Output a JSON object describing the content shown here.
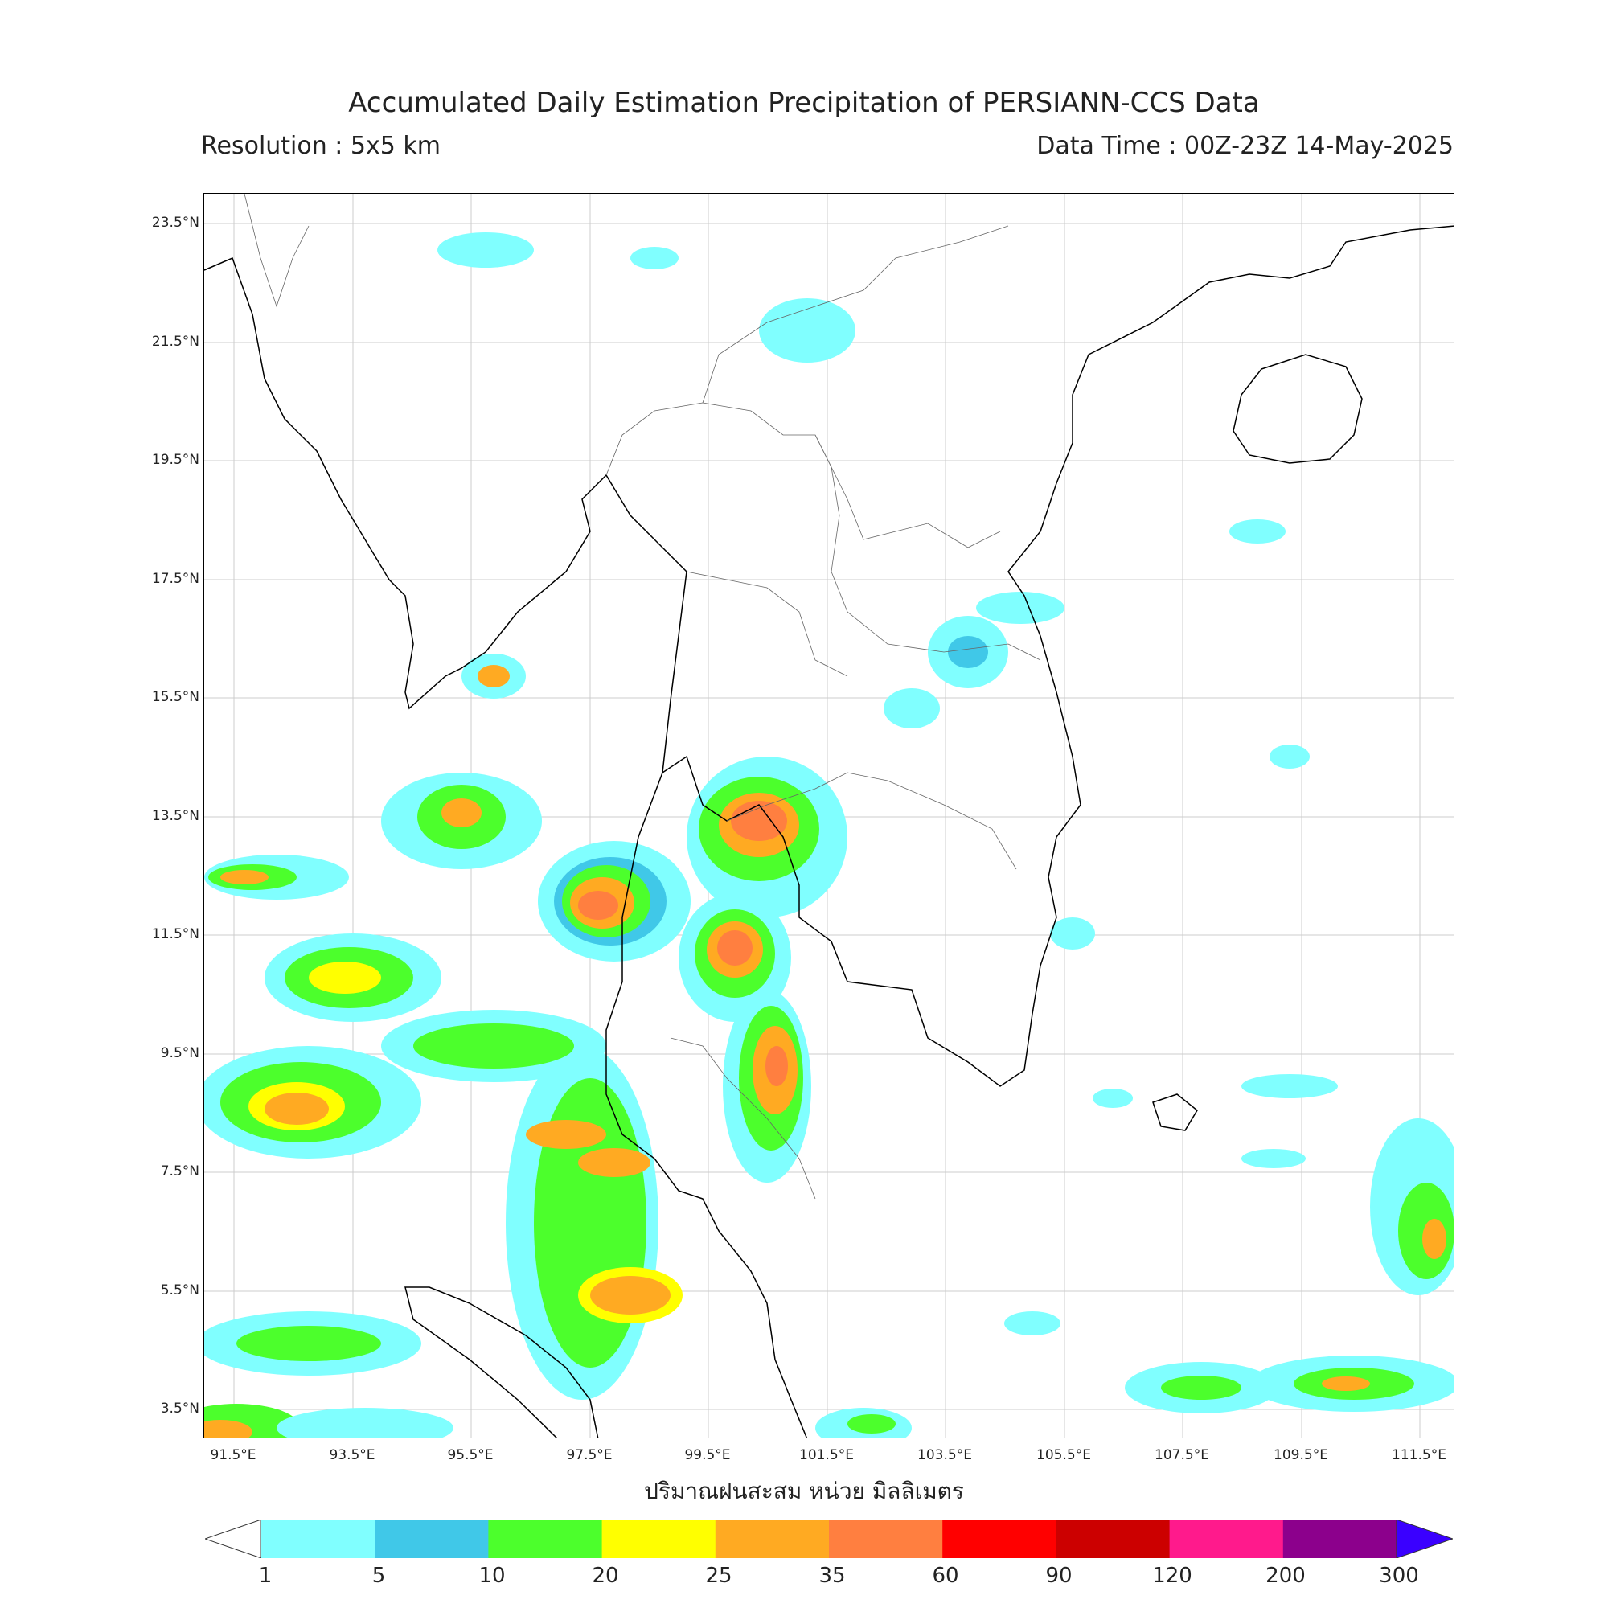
{
  "header": {
    "title": "Accumulated Daily Estimation Precipitation of PERSIANN-CCS Data",
    "resolution": "Resolution : 5x5 km",
    "data_time": "Data Time : 00Z-23Z 14-May-2025"
  },
  "map": {
    "lat_ticks": [
      "23.5°N",
      "21.5°N",
      "19.5°N",
      "17.5°N",
      "15.5°N",
      "13.5°N",
      "11.5°N",
      "9.5°N",
      "7.5°N",
      "5.5°N",
      "3.5°N"
    ],
    "lon_ticks": [
      "91.5°E",
      "93.5°E",
      "95.5°E",
      "97.5°E",
      "99.5°E",
      "101.5°E",
      "103.5°E",
      "105.5°E",
      "107.5°E",
      "109.5°E",
      "111.5°E"
    ],
    "unit_label": "ปริมาณฝนสะสม หน่วย มิลลิเมตร",
    "extent": {
      "lon_min": 91.0,
      "lon_max": 112.1,
      "lat_min": 3.0,
      "lat_max": 24.0
    },
    "grid": true
  },
  "colorbar": {
    "levels": [
      "1",
      "5",
      "10",
      "20",
      "25",
      "35",
      "60",
      "90",
      "120",
      "200",
      "300"
    ],
    "colors": [
      "#80ffff",
      "#40c8e8",
      "#4cff2c",
      "#ffff00",
      "#ffaa22",
      "#ff7f40",
      "#ff0000",
      "#cc0000",
      "#ff1a8c",
      "#8c008c"
    ],
    "under_color": "#ffffff",
    "over_color": "#3a00ff"
  }
}
